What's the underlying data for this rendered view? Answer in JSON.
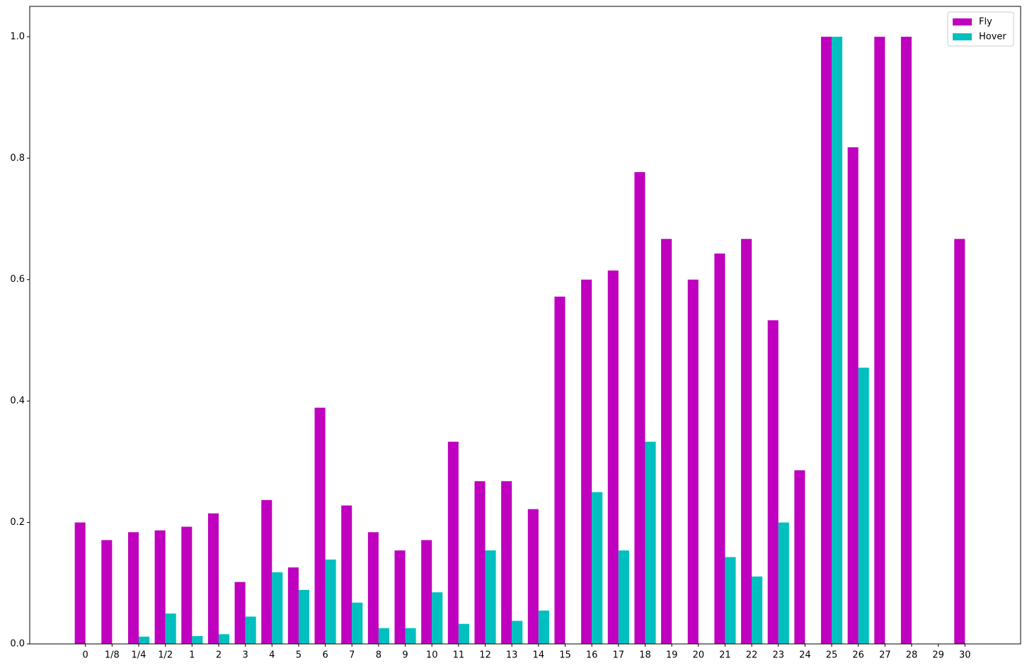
{
  "chart_data": {
    "type": "bar",
    "categories": [
      "0",
      "1/8",
      "1/4",
      "1/2",
      "1",
      "2",
      "3",
      "4",
      "5",
      "6",
      "7",
      "8",
      "9",
      "10",
      "11",
      "12",
      "13",
      "14",
      "15",
      "16",
      "17",
      "18",
      "19",
      "20",
      "21",
      "22",
      "23",
      "24",
      "25",
      "26",
      "27",
      "28",
      "29",
      "30"
    ],
    "series": [
      {
        "name": "Fly",
        "color": "#bf00bf",
        "values": [
          0.2,
          0.171,
          0.184,
          0.187,
          0.193,
          0.215,
          0.102,
          0.237,
          0.126,
          0.389,
          0.228,
          0.184,
          0.154,
          0.171,
          0.333,
          0.268,
          0.268,
          0.222,
          0.572,
          0.6,
          0.615,
          0.777,
          0.667,
          0.6,
          0.643,
          0.667,
          0.533,
          0.286,
          1.0,
          0.818,
          1.0,
          1.0,
          0,
          0.667
        ]
      },
      {
        "name": "Hover",
        "color": "#00bfbf",
        "values": [
          0,
          0,
          0.012,
          0.05,
          0.013,
          0.016,
          0.045,
          0.118,
          0.089,
          0.139,
          0.068,
          0.026,
          0.026,
          0.085,
          0.033,
          0.154,
          0.038,
          0.055,
          0,
          0.25,
          0.154,
          0.333,
          0,
          0,
          0.143,
          0.111,
          0.2,
          0,
          1.0,
          0.455,
          0,
          0,
          0,
          0
        ]
      }
    ],
    "ylim": [
      0,
      1.05
    ],
    "yticks": [
      {
        "value": 0,
        "label": "0.0"
      },
      0.2,
      0.4,
      0.6,
      0.8,
      {
        "value": 1,
        "label": "1.0"
      }
    ],
    "legend": "upper right"
  }
}
